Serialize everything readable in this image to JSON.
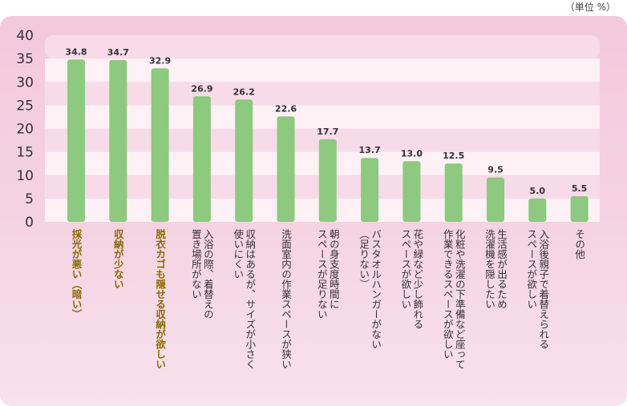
{
  "unit_label": "（単位 %）",
  "colors": {
    "bar": "#8dc97f",
    "band_light": "#fdf1f6",
    "band_dark": "#f7dbe8",
    "highlight": "#8a6a00"
  },
  "chart_data": {
    "type": "bar",
    "title": "",
    "xlabel": "",
    "ylabel": "",
    "ylim": [
      0,
      40
    ],
    "yticks": [
      0,
      5,
      10,
      15,
      20,
      25,
      30,
      35,
      40
    ],
    "grid": true,
    "categories": [
      [
        "採光が悪い（暗い）"
      ],
      [
        "収納が少ない"
      ],
      [
        "脱衣カゴも隠せる収納が欲しい"
      ],
      [
        "入浴の際、着替えの",
        "置き場所がない"
      ],
      [
        "収納はあるが、サイズが小さく",
        "使いにくい"
      ],
      [
        "洗面室内の作業スペースが狭い"
      ],
      [
        "朝の身支度時間に",
        "スペースが足りない"
      ],
      [
        "バスタオルハンガーがない",
        "（足りない）"
      ],
      [
        "花や緑など少し飾れる",
        "スペースが欲しい"
      ],
      [
        "化粧や洗濯の下準備など座って",
        "作業できるスペースが欲しい"
      ],
      [
        "生活感が出るため",
        "洗濯機を隠したい"
      ],
      [
        "入浴後親子で着替えられる",
        "スペースが欲しい"
      ],
      [
        "その他"
      ]
    ],
    "values": [
      34.8,
      34.7,
      32.9,
      26.9,
      26.2,
      22.6,
      17.7,
      13.7,
      13.0,
      12.5,
      9.5,
      5.0,
      5.5
    ],
    "value_labels": [
      "34.8",
      "34.7",
      "32.9",
      "26.9",
      "26.2",
      "22.6",
      "17.7",
      "13.7",
      "13.0",
      "12.5",
      "9.5",
      "5.0",
      "5.5"
    ],
    "highlighted": [
      true,
      true,
      true,
      false,
      false,
      false,
      false,
      false,
      false,
      false,
      false,
      false,
      false
    ]
  }
}
